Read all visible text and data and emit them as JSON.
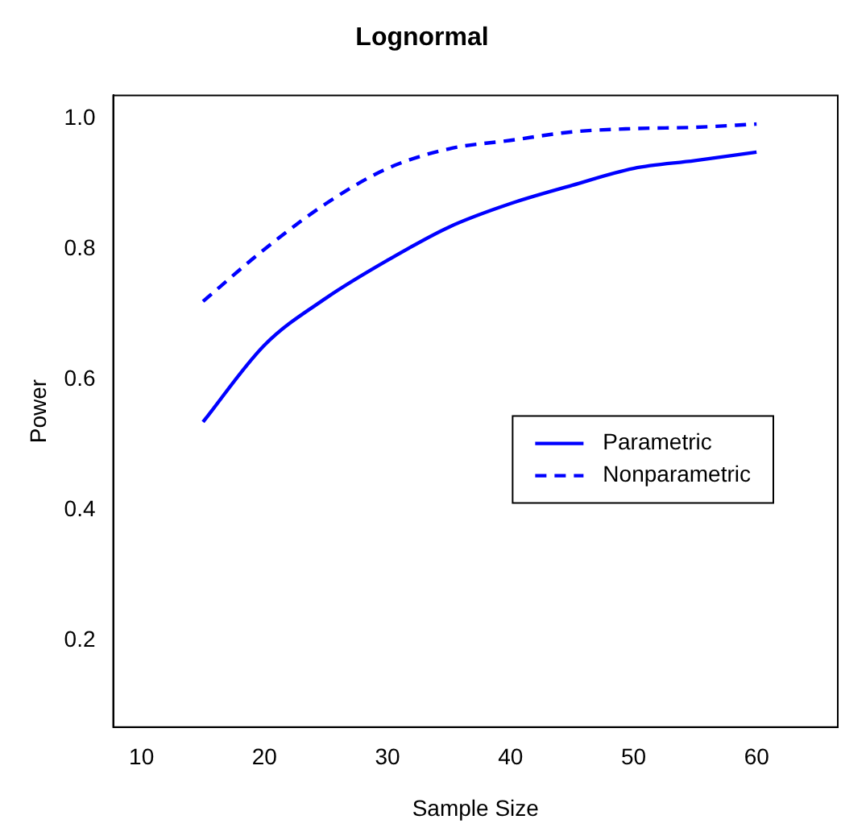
{
  "chart_data": {
    "type": "line",
    "title": "Lognormal",
    "xlabel": "Sample Size",
    "ylabel": "Power",
    "x": [
      15,
      20,
      25,
      30,
      35,
      40,
      45,
      50,
      55,
      60
    ],
    "series": [
      {
        "name": "Parametric",
        "color": "#0000ff",
        "line_style": "solid",
        "values": [
          0.535,
          0.653,
          0.725,
          0.783,
          0.834,
          0.87,
          0.898,
          0.924,
          0.936,
          0.949
        ]
      },
      {
        "name": "Nonparametric",
        "color": "#0000ff",
        "line_style": "dashed",
        "values": [
          0.72,
          0.8,
          0.87,
          0.924,
          0.954,
          0.967,
          0.98,
          0.985,
          0.987,
          0.992
        ]
      }
    ],
    "xlim": [
      7.7,
      66.6
    ],
    "xticks": [
      10,
      20,
      30,
      40,
      50,
      60
    ],
    "ylim": [
      0.067,
      1.036
    ],
    "yticks": [
      {
        "value": 0.2,
        "label": "0.2"
      },
      {
        "value": 0.4,
        "label": "0.4"
      },
      {
        "value": 0.6,
        "label": "0.6"
      },
      {
        "value": 0.8,
        "label": "0.8"
      },
      {
        "value": 1.0,
        "label": "1.0"
      }
    ],
    "grid": false,
    "legend": "right",
    "marker": "none"
  }
}
